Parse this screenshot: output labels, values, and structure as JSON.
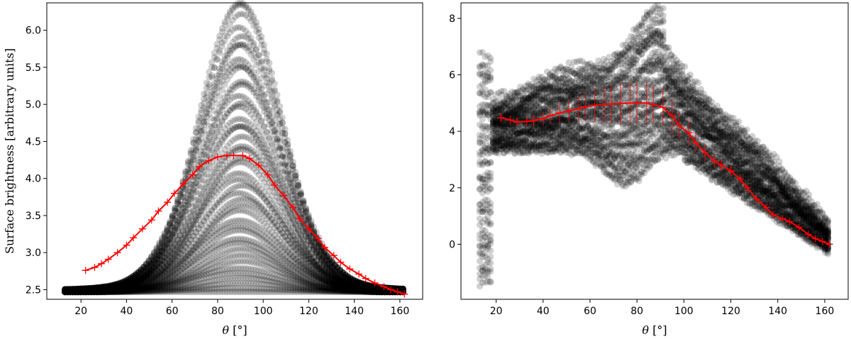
{
  "colors": {
    "scatter": "#000000",
    "mean_line": "#ff0000",
    "frame": "#000000",
    "background": "#ffffff"
  },
  "chart_data": [
    {
      "type": "scatter",
      "xlabel_symbol": "θ",
      "xlabel_unit": " [°]",
      "ylabel": "Surface brightness [arbitrary units]",
      "xlim": [
        5,
        170
      ],
      "ylim": [
        2.37,
        6.37
      ],
      "xticks": [
        20,
        40,
        60,
        80,
        100,
        120,
        140,
        160
      ],
      "yticks": [
        2.5,
        3.0,
        3.5,
        4.0,
        4.5,
        5.0,
        5.5,
        6.0
      ],
      "ytick_labels": [
        "2.5",
        "3.0",
        "3.5",
        "4.0",
        "4.5",
        "5.0",
        "5.5",
        "6.0"
      ],
      "grid": false,
      "scatter_envelope": {
        "x_range": [
          13,
          162
        ],
        "upper_peak_x": 90,
        "upper_peak_y": 6.13,
        "upper_left_y": 2.72,
        "upper_right_y": 2.43,
        "lower_y": 2.47,
        "alpha": 0.18
      },
      "series": [
        {
          "x": [
            22,
            26,
            29,
            32,
            36,
            40,
            43,
            47,
            51,
            54,
            58,
            61,
            65,
            69,
            72,
            76,
            80,
            84,
            87,
            91,
            94,
            98,
            102,
            105,
            109,
            113,
            116,
            120,
            124,
            127,
            131,
            134,
            138,
            142,
            145,
            149,
            153,
            156,
            159,
            162
          ],
          "y": [
            2.76,
            2.8,
            2.85,
            2.91,
            3.0,
            3.1,
            3.2,
            3.32,
            3.44,
            3.56,
            3.68,
            3.8,
            3.93,
            4.05,
            4.16,
            4.24,
            4.29,
            4.31,
            4.31,
            4.31,
            4.27,
            4.18,
            4.05,
            3.91,
            3.77,
            3.61,
            3.46,
            3.32,
            3.19,
            3.07,
            2.96,
            2.87,
            2.78,
            2.71,
            2.65,
            2.59,
            2.54,
            2.5,
            2.47,
            2.44
          ],
          "yerr": []
        }
      ]
    },
    {
      "type": "scatter",
      "xlabel_symbol": "θ",
      "xlabel_unit": " [°]",
      "ylabel": "",
      "xlim": [
        5,
        170
      ],
      "ylim": [
        -1.95,
        8.55
      ],
      "xticks": [
        20,
        40,
        60,
        80,
        100,
        120,
        140,
        160
      ],
      "yticks": [
        0,
        2,
        4,
        6,
        8
      ],
      "ytick_labels": [
        "0",
        "2",
        "4",
        "6",
        "8"
      ],
      "grid": false,
      "scatter_envelope": {
        "x_range": [
          13,
          162
        ],
        "alpha": 0.18
      },
      "series": [
        {
          "x": [
            22,
            26,
            29,
            33,
            36,
            40,
            43,
            47,
            51,
            55,
            58,
            62,
            66,
            69,
            73,
            77,
            80,
            84,
            87,
            91,
            95,
            98,
            102,
            105,
            109,
            113,
            116,
            120,
            124,
            127,
            131,
            135,
            138,
            142,
            145,
            149,
            153,
            156,
            159,
            162
          ],
          "y": [
            4.48,
            4.4,
            4.33,
            4.35,
            4.38,
            4.45,
            4.55,
            4.65,
            4.72,
            4.8,
            4.87,
            4.92,
            4.95,
            4.97,
            4.98,
            5.0,
            5.0,
            5.0,
            4.95,
            4.85,
            4.55,
            4.2,
            3.95,
            3.6,
            3.25,
            2.95,
            2.8,
            2.6,
            2.3,
            2.0,
            1.6,
            1.3,
            1.05,
            0.9,
            0.8,
            0.6,
            0.35,
            0.2,
            0.1,
            0.0
          ],
          "yerr": [
            0.15,
            0.15,
            0.15,
            0.15,
            0.2,
            0.25,
            0.3,
            0.35,
            0.4,
            0.45,
            0.5,
            0.6,
            0.65,
            0.7,
            0.75,
            0.75,
            0.75,
            0.75,
            0.7,
            0.65,
            0.6,
            0.5,
            0.45,
            0.35,
            0.3,
            0.25,
            0.2,
            0.18,
            0.15,
            0.12,
            0.1,
            0.08,
            0.08,
            0.06,
            0.05,
            0.04,
            0.03,
            0.02,
            0.02,
            0.01
          ]
        }
      ]
    }
  ]
}
